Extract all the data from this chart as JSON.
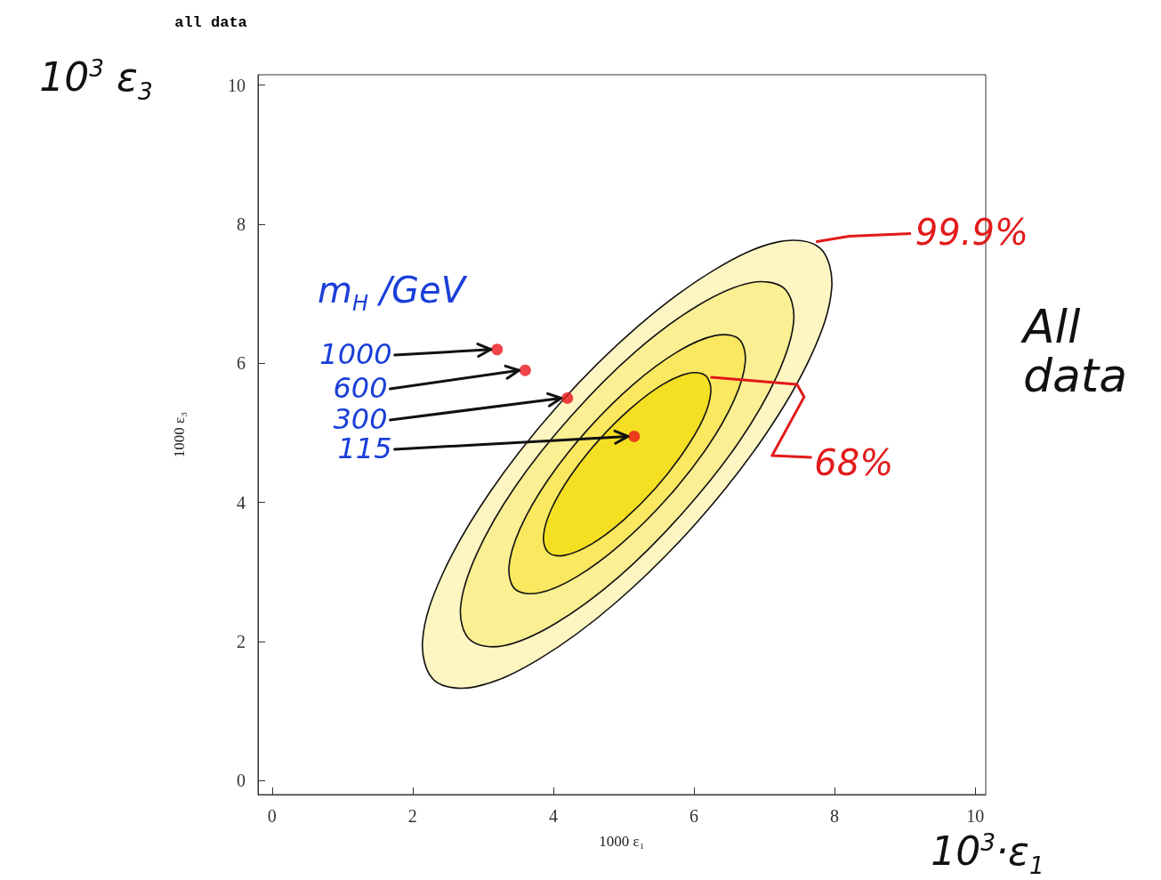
{
  "chart_data": {
    "type": "scatter",
    "title": "all data",
    "xlabel": "1000 ε₁",
    "ylabel": "1000 ε₃",
    "xlim": [
      -0.2,
      10.15
    ],
    "ylim": [
      -0.2,
      10.15
    ],
    "xticks": [
      0,
      2,
      4,
      6,
      8,
      10
    ],
    "yticks": [
      0,
      2,
      4,
      6,
      8,
      10
    ],
    "grid": false,
    "series": [
      {
        "type": "area",
        "color": "#fdf6c2",
        "x": [
          7.79,
          7.21,
          6.3,
          5.2,
          4.08,
          3.1,
          2.42,
          2.14,
          2.31,
          2.89,
          3.8,
          4.9,
          6.02,
          7.0,
          7.68,
          7.96
        ],
        "values": [
          7.66,
          7.75,
          7.35,
          6.53,
          5.41,
          4.15,
          2.96,
          2.01,
          1.44,
          1.35,
          1.75,
          2.57,
          3.69,
          4.95,
          6.14,
          7.09
        ]
      },
      {
        "type": "area",
        "color": "#fbef94",
        "x": [
          7.28,
          6.81,
          6.07,
          5.17,
          4.26,
          3.46,
          2.91,
          2.68,
          2.82,
          3.29,
          4.03,
          4.93,
          5.84,
          6.64,
          7.19,
          7.42
        ],
        "values": [
          7.08,
          7.16,
          6.84,
          6.17,
          5.25,
          4.23,
          3.26,
          2.48,
          2.02,
          1.94,
          2.26,
          2.93,
          3.85,
          4.87,
          5.84,
          6.62
        ]
      },
      {
        "type": "area",
        "color": "#f9e860",
        "x": [
          6.64,
          6.3,
          5.77,
          5.14,
          4.49,
          3.92,
          3.53,
          3.37,
          3.46,
          3.8,
          4.33,
          4.96,
          5.61,
          6.18,
          6.57,
          6.73
        ],
        "values": [
          6.35,
          6.4,
          6.17,
          5.7,
          5.05,
          4.32,
          3.63,
          3.08,
          2.75,
          2.7,
          2.93,
          3.4,
          4.05,
          4.78,
          5.47,
          6.02
        ]
      },
      {
        "type": "area",
        "color": "#f5df22",
        "x": [
          6.17,
          5.94,
          5.56,
          5.11,
          4.65,
          4.25,
          3.97,
          3.86,
          3.93,
          4.16,
          4.54,
          4.99,
          5.45,
          5.85,
          6.13,
          6.24
        ],
        "values": [
          5.82,
          5.86,
          5.7,
          5.36,
          4.9,
          4.39,
          3.9,
          3.51,
          3.28,
          3.24,
          3.4,
          3.74,
          4.2,
          4.72,
          5.2,
          5.59
        ]
      },
      {
        "color": "#e8141c",
        "x": [
          3.2,
          3.6,
          4.2,
          5.15
        ],
        "values": [
          6.2,
          5.9,
          5.5,
          4.95
        ]
      }
    ],
    "annotations": [
      "1000",
      {
        "text": "600",
        "x": 3.6,
        "y": 5.9
      },
      {
        "text": "300",
        "x": 4.2,
        "y": 5.5
      },
      {
        "text": "115",
        "x": 5.15,
        "y": 4.95
      },
      "m$_{H}$ /GeV",
      {
        "text": "99.9%",
        "x": 7.7,
        "y": 7.75
      },
      {
        "text": "68%",
        "x": 6.2,
        "y": 5.85
      },
      "All data",
      "10$^{3}$ ε$_{3}$",
      "10$^{3}$·ε$_{1}$"
    ]
  }
}
